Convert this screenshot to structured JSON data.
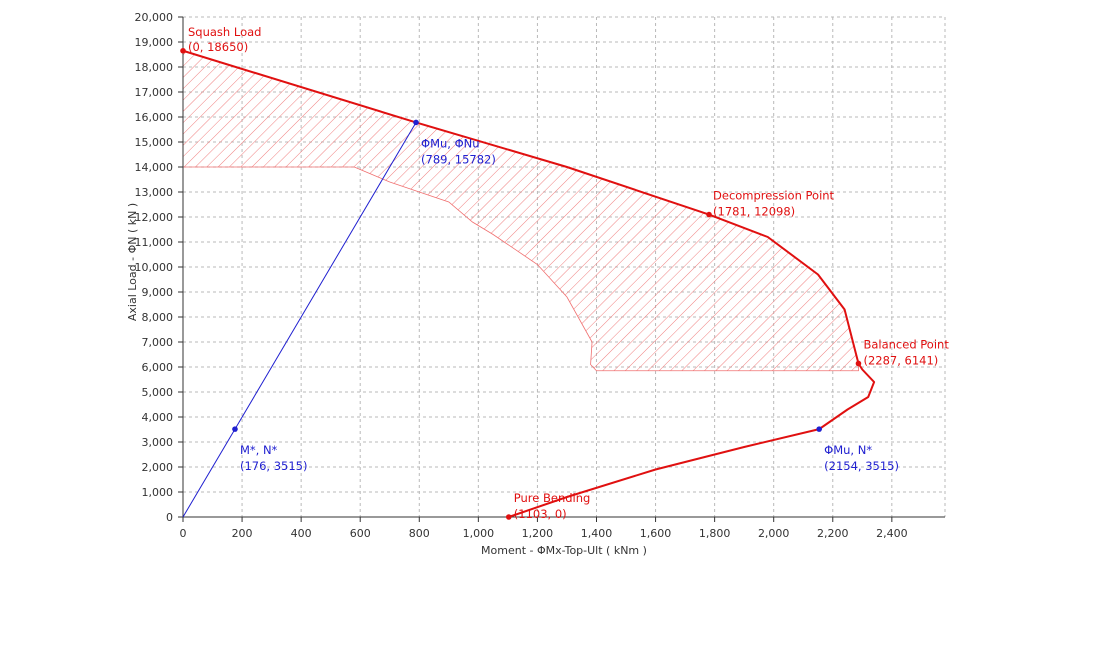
{
  "chart_data": {
    "type": "line",
    "xlabel": "Moment - ΦMx-Top-Ult ( kNm )",
    "ylabel": "Axial Load - ΦN ( kN )",
    "xlim": [
      0,
      2580
    ],
    "ylim": [
      0,
      20000
    ],
    "x_ticks": [
      0,
      200,
      400,
      600,
      800,
      1000,
      1200,
      1400,
      1600,
      1800,
      2000,
      2200,
      2400
    ],
    "x_tick_labels": [
      "0",
      "200",
      "400",
      "600",
      "800",
      "1,000",
      "1,200",
      "1,400",
      "1,600",
      "1,800",
      "2,000",
      "2,200",
      "2,400"
    ],
    "y_ticks": [
      0,
      1000,
      2000,
      3000,
      4000,
      5000,
      6000,
      7000,
      8000,
      9000,
      10000,
      11000,
      12000,
      13000,
      14000,
      15000,
      16000,
      17000,
      18000,
      19000,
      20000
    ],
    "y_tick_labels": [
      "0",
      "1,000",
      "2,000",
      "3,000",
      "4,000",
      "5,000",
      "6,000",
      "7,000",
      "8,000",
      "9,000",
      "10,000",
      "11,000",
      "12,000",
      "13,000",
      "14,000",
      "15,000",
      "16,000",
      "17,000",
      "18,000",
      "19,000",
      "20,000"
    ],
    "grid": true,
    "colors": {
      "interaction": "#e01010",
      "load_path": "#2020d0",
      "hatch": "#f07070"
    },
    "series": [
      {
        "x": [
          0,
          789,
          1300,
          1781,
          1980,
          2150,
          2240,
          2287,
          2300,
          2340,
          2320,
          2250,
          2154,
          1900,
          1600,
          1300,
          1103
        ],
        "y": [
          18650,
          15782,
          14000,
          12098,
          11200,
          9700,
          8300,
          6141,
          5900,
          5400,
          4800,
          4300,
          3515,
          2800,
          1900,
          800,
          0
        ]
      },
      {
        "x": [
          0,
          176,
          789
        ],
        "y": [
          0,
          3515,
          15782
        ]
      }
    ],
    "hatched_region": {
      "upper_x": [
        0,
        789,
        1300,
        1781,
        1980,
        2150,
        2240,
        2287,
        2287
      ],
      "upper_y": [
        18650,
        15782,
        14000,
        12098,
        11200,
        9700,
        8300,
        6141,
        5850
      ],
      "lower_x": [
        1400,
        1380,
        1385,
        1300,
        1200,
        1050,
        980,
        900,
        800,
        700,
        600,
        580,
        0
      ],
      "lower_y": [
        5850,
        6100,
        7000,
        8800,
        10100,
        11300,
        11800,
        12600,
        13000,
        13400,
        13900,
        14000,
        14000
      ]
    },
    "annotations": [
      {
        "name": "Squash Load",
        "coords": "(0, 18650)",
        "x": 0,
        "y": 18650,
        "color": "red"
      },
      {
        "name": "ΦMu, ΦNu",
        "coords": "(789, 15782)",
        "x": 789,
        "y": 15782,
        "color": "blue"
      },
      {
        "name": "Decompression Point",
        "coords": "(1781, 12098)",
        "x": 1781,
        "y": 12098,
        "color": "red"
      },
      {
        "name": "Balanced Point",
        "coords": "(2287, 6141)",
        "x": 2287,
        "y": 6141,
        "color": "red"
      },
      {
        "name": "M*, N*",
        "coords": "(176, 3515)",
        "x": 176,
        "y": 3515,
        "color": "blue"
      },
      {
        "name": "ΦMu, N*",
        "coords": "(2154, 3515)",
        "x": 2154,
        "y": 3515,
        "color": "blue"
      },
      {
        "name": "Pure Bending",
        "coords": "(1103, 0)",
        "x": 1103,
        "y": 0,
        "color": "red"
      }
    ]
  }
}
